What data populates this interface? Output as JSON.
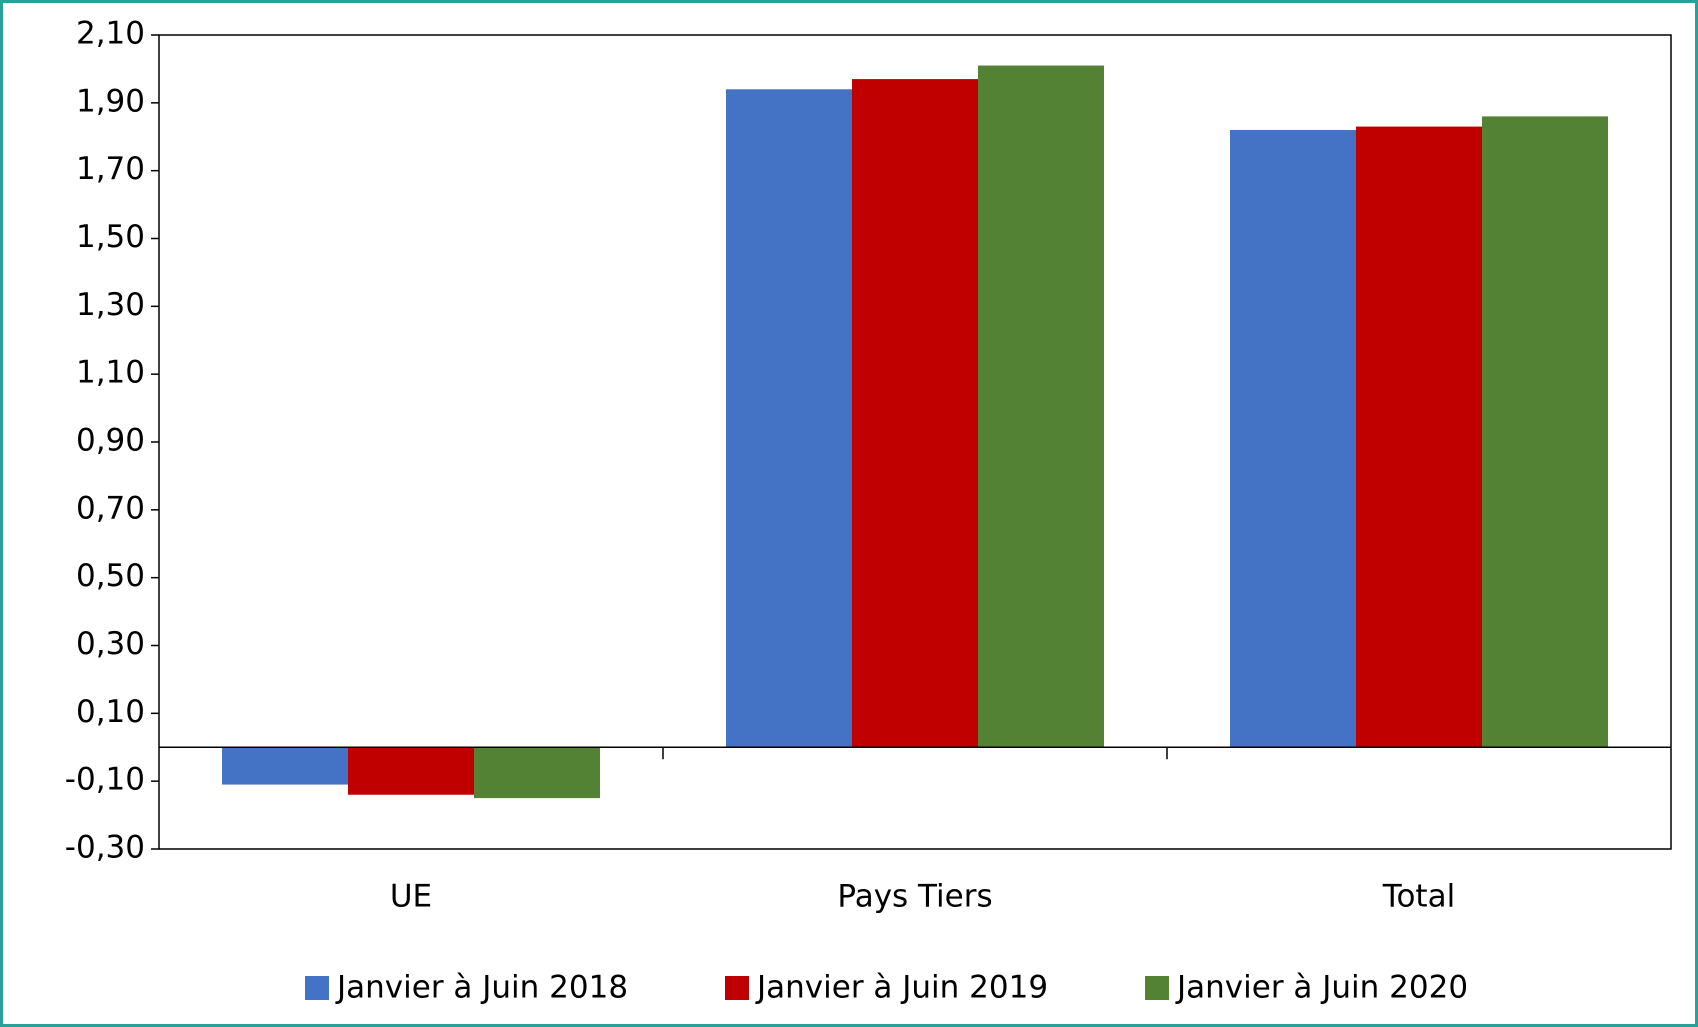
{
  "chart_data": {
    "type": "bar",
    "categories": [
      "UE",
      "Pays Tiers",
      "Total"
    ],
    "series": [
      {
        "name": "Janvier à Juin 2018",
        "color": "#4472c4",
        "values": [
          -0.11,
          1.94,
          1.82
        ]
      },
      {
        "name": "Janvier à Juin 2019",
        "color": "#c00000",
        "values": [
          -0.14,
          1.97,
          1.83
        ]
      },
      {
        "name": "Janvier à Juin 2020",
        "color": "#548235",
        "values": [
          -0.15,
          2.01,
          1.86
        ]
      }
    ],
    "ylim": [
      -0.3,
      2.1
    ],
    "yticks": [
      {
        "value": -0.3,
        "label": "-0,30"
      },
      {
        "value": -0.1,
        "label": "-0,10"
      },
      {
        "value": 0.1,
        "label": "0,10"
      },
      {
        "value": 0.3,
        "label": "0,30"
      },
      {
        "value": 0.5,
        "label": "0,50"
      },
      {
        "value": 0.7,
        "label": "0,70"
      },
      {
        "value": 0.9,
        "label": "0,90"
      },
      {
        "value": 1.1,
        "label": "1,10"
      },
      {
        "value": 1.3,
        "label": "1,30"
      },
      {
        "value": 1.5,
        "label": "1,50"
      },
      {
        "value": 1.7,
        "label": "1,70"
      },
      {
        "value": 1.9,
        "label": "1,90"
      },
      {
        "value": 2.1,
        "label": "2,10"
      }
    ],
    "grid": false,
    "legend": "bottom"
  }
}
